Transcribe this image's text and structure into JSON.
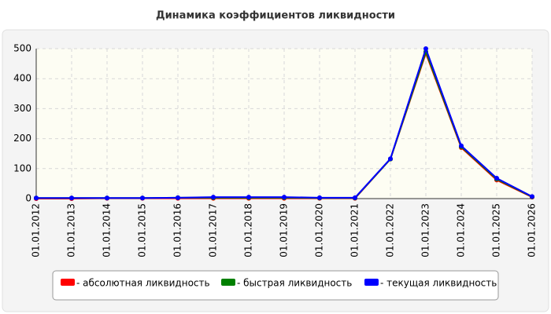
{
  "chart_data": {
    "type": "line",
    "title": "Динамика коэффициентов ликвидности",
    "categories": [
      "01.01.2012",
      "01.01.2013",
      "01.01.2014",
      "01.01.2015",
      "01.01.2016",
      "01.01.2017",
      "01.01.2018",
      "01.01.2019",
      "01.01.2020",
      "01.01.2021",
      "01.01.2022",
      "01.01.2023",
      "01.01.2024",
      "01.01.2025",
      "01.01.2026"
    ],
    "series": [
      {
        "name": "- абсолютная ликвидность",
        "color": "#ff0000",
        "values": [
          0,
          0,
          1,
          1,
          1,
          1,
          1,
          1,
          1,
          1,
          132,
          485,
          170,
          62,
          5
        ]
      },
      {
        "name": "- быстрая ликвидность",
        "color": "#008000",
        "values": [
          2,
          2,
          2,
          2,
          3,
          3,
          3,
          3,
          2,
          2,
          132,
          490,
          173,
          65,
          6
        ]
      },
      {
        "name": "- текущая ликвидность",
        "color": "#0000ff",
        "values": [
          2,
          2,
          2,
          2,
          3,
          5,
          5,
          5,
          3,
          3,
          133,
          500,
          176,
          68,
          7
        ]
      }
    ],
    "ylim": [
      0,
      500
    ],
    "yticks": [
      0,
      100,
      200,
      300,
      400,
      500
    ],
    "grid": true
  }
}
